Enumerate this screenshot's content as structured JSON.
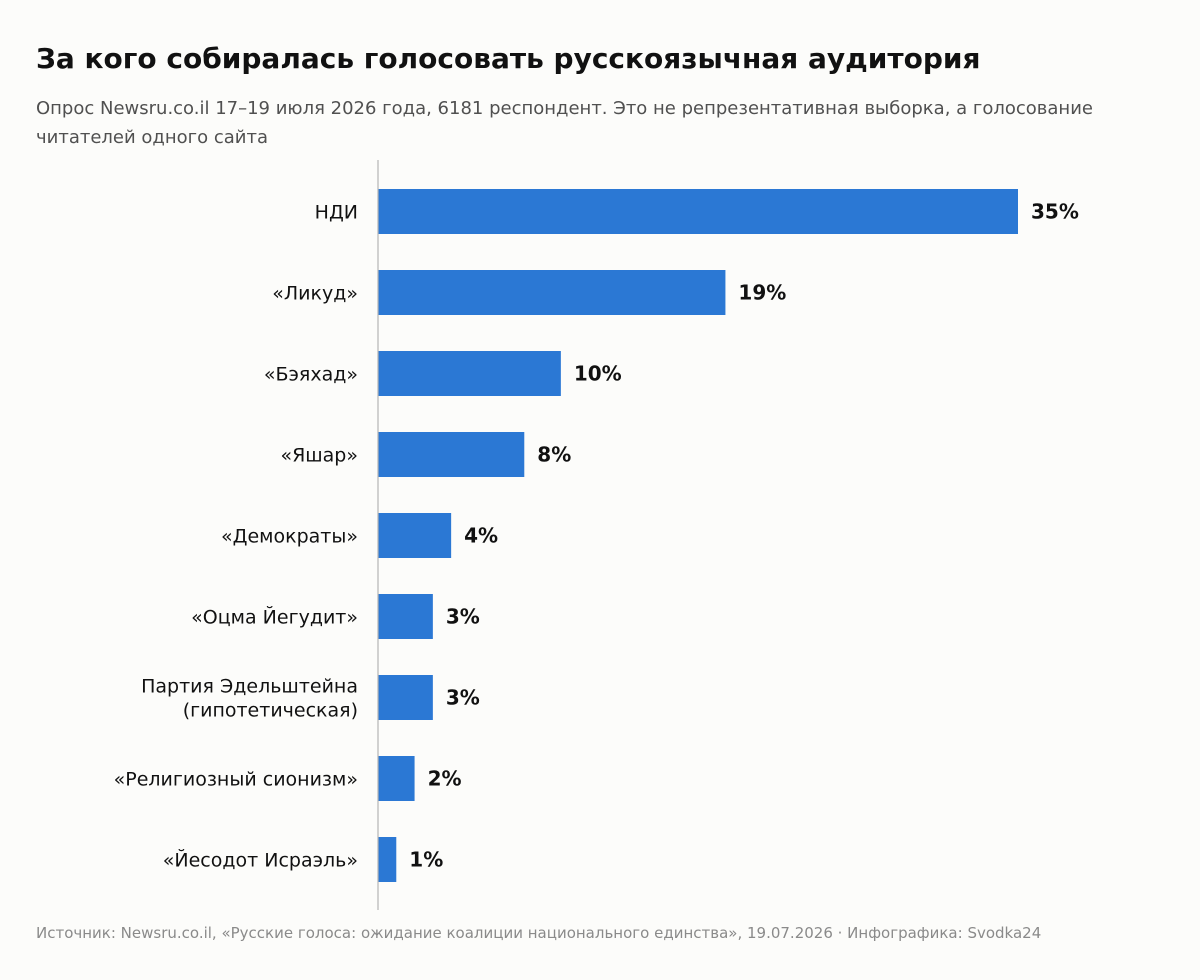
{
  "title": "За кого собиралась голосовать русскоязычная аудитория",
  "subtitle": "Опрос Newsru.co.il 17–19 июля 2026 года, 6181 респондент. Это не репрезентативная выборка, а голосование читателей одного сайта",
  "source": "Источник: Newsru.co.il, «Русские голоса: ожидание коалиции национального единства», 19.07.2026 · Инфографика: Svodka24",
  "colors": {
    "bar": "#2b78d4",
    "axis": "#b5b5b5",
    "background": "#fcfcfa"
  },
  "chart_data": {
    "type": "bar",
    "orientation": "horizontal",
    "categories": [
      [
        "НДИ"
      ],
      [
        "«Ликуд»"
      ],
      [
        "«Бэяхад»"
      ],
      [
        "«Яшар»"
      ],
      [
        "«Демократы»"
      ],
      [
        "«Оцма Йегудит»"
      ],
      [
        "Партия Эдельштейна",
        "(гипотетическая)"
      ],
      [
        "«Религиозный сионизм»"
      ],
      [
        "«Йесодот Исраэль»"
      ]
    ],
    "values": [
      35,
      19,
      10,
      8,
      4,
      3,
      3,
      2,
      1
    ],
    "value_labels": [
      "35%",
      "19%",
      "10%",
      "8%",
      "4%",
      "3%",
      "3%",
      "2%",
      "1%"
    ],
    "unit": "%",
    "xlim": [
      0,
      35
    ],
    "grid": false,
    "legend": "none"
  }
}
